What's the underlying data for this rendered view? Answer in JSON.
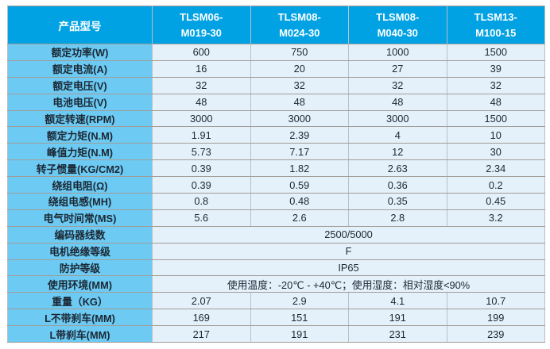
{
  "table": {
    "corner_label": "产品型号",
    "models": [
      {
        "line1": "TLSM06-",
        "line2": "M019-30"
      },
      {
        "line1": "TLSM08-",
        "line2": "M024-30"
      },
      {
        "line1": "TLSM08-",
        "line2": "M040-30"
      },
      {
        "line1": "TLSM13-",
        "line2": "M100-15"
      }
    ],
    "rows": [
      {
        "label": "额定功率(W)",
        "values": [
          "600",
          "750",
          "1000",
          "1500"
        ]
      },
      {
        "label": "额定电流(A)",
        "values": [
          "16",
          "20",
          "27",
          "39"
        ]
      },
      {
        "label": "额定电压(V)",
        "values": [
          "32",
          "32",
          "32",
          "32"
        ]
      },
      {
        "label": "电池电压(V)",
        "values": [
          "48",
          "48",
          "48",
          "48"
        ]
      },
      {
        "label": "额定转速(RPM)",
        "values": [
          "3000",
          "3000",
          "3000",
          "1500"
        ]
      },
      {
        "label": "额定力矩(N.M)",
        "values": [
          "1.91",
          "2.39",
          "4",
          "10"
        ]
      },
      {
        "label": "峰值力矩(N.M)",
        "values": [
          "5.73",
          "7.17",
          "12",
          "30"
        ]
      },
      {
        "label": "转子惯量(KG/CM2)",
        "values": [
          "0.39",
          "1.82",
          "2.63",
          "2.34"
        ]
      },
      {
        "label": "绕组电阻(Ω)",
        "values": [
          "0.39",
          "0.59",
          "0.36",
          "0.2"
        ]
      },
      {
        "label": "绕组电感(MH)",
        "values": [
          "0.8",
          "0.48",
          "0.35",
          "0.45"
        ]
      },
      {
        "label": "电气时间常(MS)",
        "values": [
          "5.6",
          "2.6",
          "2.8",
          "3.2"
        ]
      },
      {
        "label": "编码器线数",
        "merged": "2500/5000"
      },
      {
        "label": "电机绝缘等级",
        "merged": "F"
      },
      {
        "label": "防护等级",
        "merged": "IP65"
      },
      {
        "label": "使用环境(MM)",
        "merged": "使用温度：-20℃ - +40℃；使用湿度：相对湿度<90%"
      },
      {
        "label": "重量（KG）",
        "values": [
          "2.07",
          "2.9",
          "4.1",
          "10.7"
        ]
      },
      {
        "label": "L不带刹车(MM)",
        "values": [
          "169",
          "151",
          "191",
          "199"
        ]
      },
      {
        "label": "L带刹车(MM)",
        "values": [
          "217",
          "191",
          "231",
          "239"
        ]
      }
    ],
    "colors": {
      "header_bg": "#00a2e3",
      "header_text": "#ffffff",
      "label_bg": "#6ccaf3",
      "cell_bg": "#e4f1fa",
      "body_text": "#1b2733"
    }
  }
}
